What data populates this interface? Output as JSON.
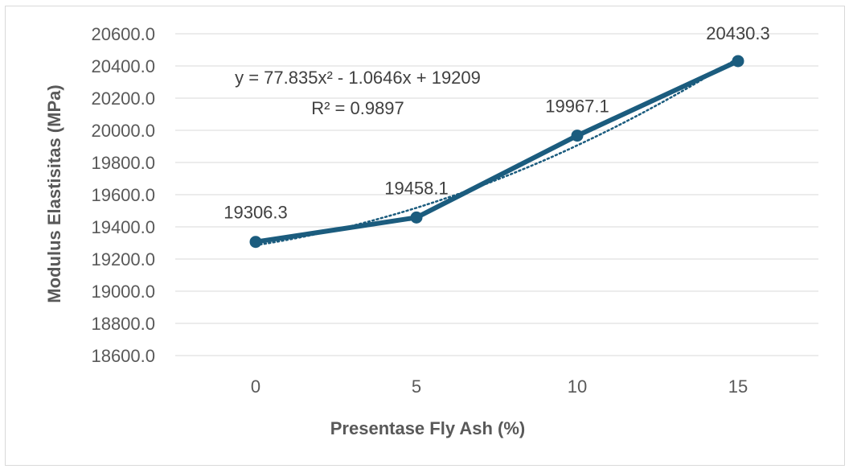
{
  "chart_data": {
    "type": "line",
    "categories": [
      "0",
      "5",
      "10",
      "15"
    ],
    "x": [
      0,
      5,
      10,
      15
    ],
    "series": [
      {
        "values": [
          19306.3,
          19458.1,
          19967.1,
          20430.3
        ],
        "color": "#1b5c7e"
      }
    ],
    "data_labels": [
      "19306.3",
      "19458.1",
      "19967.1",
      "20430.3"
    ],
    "trendline": {
      "type": "polynomial-2",
      "coefficients": {
        "a": 77.835,
        "b": -1.0646,
        "c": 19209
      },
      "equation": "y = 77.835x² - 1.0646x + 19209",
      "r_squared": "R² = 0.9897",
      "color": "#1b5c7e",
      "style": "dotted"
    },
    "xlabel": "Presentase Fly Ash (%)",
    "ylabel": "Modulus Elastisitas (MPa)",
    "ylim": [
      18600,
      20600
    ],
    "yticks": [
      "20600.0",
      "20400.0",
      "20200.0",
      "20000.0",
      "19800.0",
      "19600.0",
      "19400.0",
      "19200.0",
      "19000.0",
      "18800.0",
      "18600.0"
    ],
    "ytick_values": [
      20600,
      20400,
      20200,
      20000,
      19800,
      19600,
      19400,
      19200,
      19000,
      18800,
      18600
    ],
    "grid": true,
    "legend": "none",
    "gridline_color": "#d9d9d9"
  }
}
